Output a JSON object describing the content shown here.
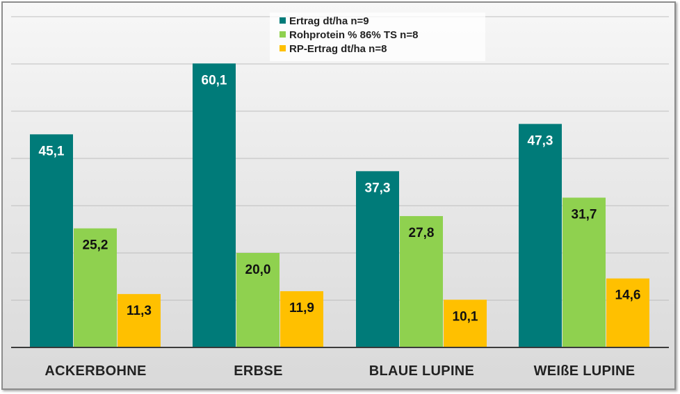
{
  "chart_data": {
    "type": "bar",
    "categories": [
      "ACKERBOHNE",
      "ERBSE",
      "BLAUE LUPINE",
      "WEIßE LUPINE"
    ],
    "series": [
      {
        "name": "Ertrag dt/ha n=9",
        "color": "#007b79",
        "labelColor": "#ffffff",
        "values": [
          45.1,
          60.1,
          37.3,
          47.3
        ],
        "labels": [
          "45,1",
          "60,1",
          "37,3",
          "47,3"
        ]
      },
      {
        "name": "Rohprotein % 86% TS n=8",
        "color": "#8fd14f",
        "labelColor": "#111111",
        "values": [
          25.2,
          20.0,
          27.8,
          31.7
        ],
        "labels": [
          "25,2",
          "20,0",
          "27,8",
          "31,7"
        ]
      },
      {
        "name": "RP-Ertrag dt/ha n=8",
        "color": "#ffc000",
        "labelColor": "#111111",
        "values": [
          11.3,
          11.9,
          10.1,
          14.6
        ],
        "labels": [
          "11,3",
          "11,9",
          "10,1",
          "14,6"
        ]
      }
    ],
    "ylim": [
      0,
      60
    ],
    "grid": true,
    "legend_position": "top-center"
  }
}
